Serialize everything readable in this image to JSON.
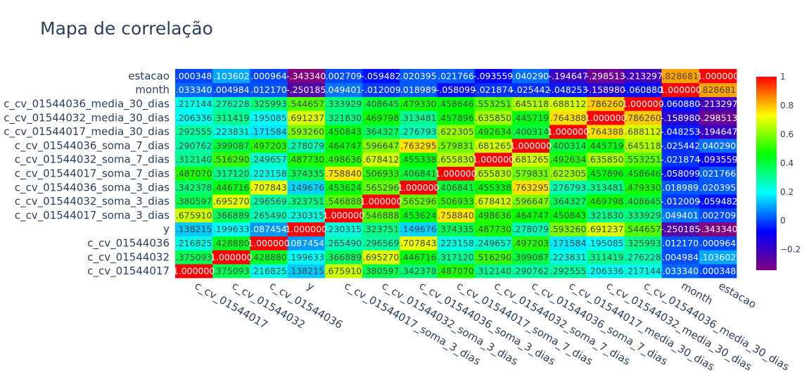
{
  "chart_data": {
    "type": "heatmap",
    "title": "Mapa de correlação",
    "variables": [
      "c_cv_01544017",
      "c_cv_01544032",
      "c_cv_01544036",
      "y",
      "c_cv_01544017_soma_3_dias",
      "c_cv_01544032_soma_3_dias",
      "c_cv_01544036_soma_3_dias",
      "c_cv_01544017_soma_7_dias",
      "c_cv_01544032_soma_7_dias",
      "c_cv_01544036_soma_7_dias",
      "c_cv_01544017_media_30_dias",
      "c_cv_01544032_media_30_dias",
      "c_cv_01544036_media_30_dias",
      "month",
      "estacao"
    ],
    "matrix": [
      [
        1.0,
        0.375093,
        0.216825,
        0.138215,
        0.67591,
        0.380597,
        0.342378,
        0.48707,
        0.31214,
        0.290762,
        0.292555,
        0.206336,
        0.217144,
        0.03334,
        0.000348
      ],
      [
        0.375093,
        1.0,
        0.42888,
        0.199633,
        0.366889,
        0.69527,
        0.446716,
        0.31712,
        0.51629,
        0.399087,
        0.223831,
        0.311419,
        0.276228,
        0.004984,
        0.103602
      ],
      [
        0.216825,
        0.42888,
        1.0,
        0.087454,
        0.26549,
        0.296569,
        0.707843,
        0.223158,
        0.249657,
        0.497203,
        0.171584,
        0.195085,
        0.325993,
        0.01217,
        0.000964
      ],
      [
        0.138215,
        0.199633,
        0.087454,
        1.0,
        0.230315,
        0.323751,
        0.149676,
        0.374335,
        0.48773,
        0.278079,
        0.59326,
        0.691237,
        0.544657,
        -0.250185,
        -0.34334
      ],
      [
        0.67591,
        0.366889,
        0.26549,
        0.230315,
        1.0,
        0.546888,
        0.453624,
        0.75884,
        0.498636,
        0.464747,
        0.450843,
        0.32183,
        0.333929,
        0.049401,
        0.002709
      ],
      [
        0.380597,
        0.69527,
        0.296569,
        0.323751,
        0.546888,
        1.0,
        0.565296,
        0.506933,
        0.678412,
        0.596647,
        0.364327,
        0.469798,
        0.408645,
        -0.012009,
        -0.059482
      ],
      [
        0.342378,
        0.446716,
        0.707843,
        0.149676,
        0.453624,
        0.565296,
        1.0,
        0.406841,
        0.455338,
        0.763295,
        0.276793,
        0.313481,
        0.47933,
        0.018989,
        0.020395
      ],
      [
        0.48707,
        0.31712,
        0.223158,
        0.374335,
        0.75884,
        0.506933,
        0.406841,
        1.0,
        0.65583,
        0.579831,
        0.622305,
        0.457896,
        0.458646,
        -0.058099,
        0.021766
      ],
      [
        0.31214,
        0.51629,
        0.249657,
        0.48773,
        0.498636,
        0.678412,
        0.455338,
        0.65583,
        1.0,
        0.681265,
        0.492634,
        0.63585,
        0.553251,
        -0.021874,
        -0.093559
      ],
      [
        0.290762,
        0.399087,
        0.497203,
        0.278079,
        0.464747,
        0.596647,
        0.763295,
        0.579831,
        0.681265,
        1.0,
        0.400314,
        0.445719,
        0.645118,
        -0.025442,
        0.04029
      ],
      [
        0.292555,
        0.223831,
        0.171584,
        0.59326,
        0.450843,
        0.364327,
        0.276793,
        0.622305,
        0.492634,
        0.400314,
        1.0,
        0.764388,
        0.688112,
        -0.048253,
        -0.194647
      ],
      [
        0.206336,
        0.311419,
        0.195085,
        0.691237,
        0.32183,
        0.469798,
        0.313481,
        0.457896,
        0.63585,
        0.445719,
        0.764388,
        1.0,
        0.78626,
        -0.15898,
        -0.298513
      ],
      [
        0.217144,
        0.276228,
        0.325993,
        0.544657,
        0.333929,
        0.408645,
        0.47933,
        0.458646,
        0.553251,
        0.645118,
        0.688112,
        0.78626,
        1.0,
        -0.06088,
        -0.213297
      ],
      [
        0.03334,
        0.004984,
        0.01217,
        -0.250185,
        0.049401,
        -0.012009,
        0.018989,
        -0.058099,
        -0.021874,
        -0.025442,
        -0.048253,
        -0.15898,
        -0.06088,
        1.0,
        0.828681
      ],
      [
        0.000348,
        0.103602,
        0.000964,
        -0.34334,
        0.002709,
        -0.059482,
        0.020395,
        0.021766,
        -0.093559,
        0.04029,
        -0.194647,
        -0.298513,
        -0.213297,
        0.828681,
        1.0
      ]
    ],
    "zrange": [
      -0.34334,
      1.0
    ],
    "colorbar_ticks": [
      1,
      0.8,
      0.6,
      0.4,
      0.2,
      0,
      -0.2
    ],
    "colorbar_tick_labels": [
      "1",
      "0.8",
      "0.6",
      "0.4",
      "0.2",
      "0",
      "−0.2"
    ],
    "colorscale": "jet",
    "colorscale_colors": [
      "#800080",
      "#0000ff",
      "#00ffff",
      "#00ff00",
      "#ffff00",
      "#ff0000"
    ]
  }
}
